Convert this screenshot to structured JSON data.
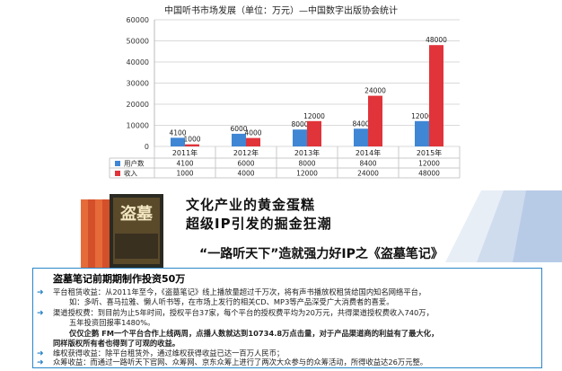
{
  "chart_data": {
    "type": "bar",
    "title": "中国听书市场发展（单位：万元）—中国数字出版协会统计",
    "categories": [
      "2011年",
      "2012年",
      "2013年",
      "2014年",
      "2015年"
    ],
    "series": [
      {
        "name": "用户数",
        "color": "#3f86d4",
        "values": [
          4100,
          6000,
          8000,
          8400,
          12000
        ]
      },
      {
        "name": "收入",
        "color": "#e0343a",
        "values": [
          1000,
          4000,
          12000,
          24000,
          48000
        ]
      }
    ],
    "ylim": [
      0,
      60000
    ],
    "yticks": [
      "0",
      "10000",
      "20000",
      "30000",
      "40000",
      "50000",
      "60000"
    ],
    "grid": true,
    "legend": "data-table below x-axis"
  },
  "banner": {
    "headline1": "文化产业的黄金蛋糕",
    "headline2": "超级IP引发的掘金狂潮",
    "headline3": "“一路听天下”造就强力好IP之《盗墓笔记》",
    "book_cover_text": "盗墓"
  },
  "info": {
    "title": "盗墓笔记前期期制作投资50万",
    "lines": [
      "平台租赁收益：从2011年至今，《盗墓笔记》线上播放量超过千万次，将有声书播放权租赁给国内知名网络平台，",
      "如：多听、喜马拉雅、懒人听书等，在市场上发行的相关CD、MP3等产品深受广大消费者的喜爱。",
      "渠道授权费：到目前为止5年时间，授权平台37家，每个平台的授权费平均为20万元，共得渠道授权费收入740万，",
      "五年投资回报率1480%。",
      "仅仅企鹅 FM一个平台合作上线两周，点播人数就达到10734.8万点击量，对于产品渠道商的利益有了最大化，",
      "同样版权所有者也得到了可观的收益。",
      "维权获得收益：除平台租赁外，通过维权获得收益已达一百万人民币；",
      "众筹收益：而通过一路听天下官网、众筹网、京东众筹上进行了两次大众参与的众筹活动，所得收益达26万元整。"
    ]
  }
}
